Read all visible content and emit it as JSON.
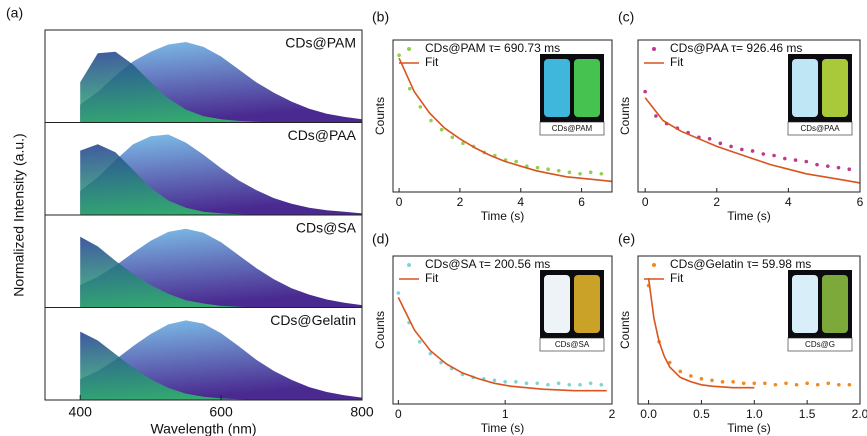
{
  "chart_data": [
    {
      "type": "area",
      "label": "(a)",
      "xlabel": "Wavelength (nm)",
      "ylabel": "Normalized Intensity (a.u.)",
      "xlim": [
        350,
        800
      ],
      "ylim": [
        0,
        1.1
      ],
      "xticks": [
        400,
        600,
        800
      ],
      "x": [
        400,
        425,
        450,
        475,
        500,
        525,
        550,
        575,
        600,
        625,
        650,
        675,
        700,
        725,
        750,
        775,
        800
      ],
      "subplots": [
        {
          "label": "CDs@PAM",
          "series": [
            {
              "gradient": [
                "#1e3c8f",
                "#2fbf6a"
              ],
              "values": [
                0.5,
                0.86,
                0.88,
                0.72,
                0.5,
                0.3,
                0.16,
                0.08,
                0.04,
                0.02,
                0.01,
                0,
                0,
                0,
                0,
                0,
                0
              ]
            },
            {
              "gradient": [
                "#7fc4ec",
                "#4a2a90"
              ],
              "values": [
                0.22,
                0.38,
                0.58,
                0.76,
                0.88,
                0.97,
                1.0,
                0.94,
                0.82,
                0.66,
                0.5,
                0.37,
                0.26,
                0.17,
                0.11,
                0.07,
                0.04
              ]
            }
          ]
        },
        {
          "label": "CDs@PAA",
          "series": [
            {
              "gradient": [
                "#1e3c8f",
                "#2fbf6a"
              ],
              "values": [
                0.8,
                0.88,
                0.78,
                0.56,
                0.34,
                0.18,
                0.09,
                0.04,
                0.02,
                0.01,
                0,
                0,
                0,
                0,
                0,
                0,
                0
              ]
            },
            {
              "gradient": [
                "#7fc4ec",
                "#4a2a90"
              ],
              "values": [
                0.3,
                0.47,
                0.68,
                0.88,
                0.98,
                1.0,
                0.9,
                0.75,
                0.58,
                0.43,
                0.31,
                0.21,
                0.14,
                0.09,
                0.06,
                0.04,
                0.02
              ]
            }
          ]
        },
        {
          "label": "CDs@SA",
          "series": [
            {
              "gradient": [
                "#1e3c8f",
                "#2fbf6a"
              ],
              "values": [
                0.88,
                0.76,
                0.58,
                0.42,
                0.28,
                0.17,
                0.09,
                0.05,
                0.02,
                0.01,
                0,
                0,
                0,
                0,
                0,
                0,
                0
              ]
            },
            {
              "gradient": [
                "#7fc4ec",
                "#4a2a90"
              ],
              "values": [
                0.28,
                0.38,
                0.52,
                0.68,
                0.83,
                0.94,
                0.98,
                0.93,
                0.81,
                0.65,
                0.49,
                0.35,
                0.24,
                0.16,
                0.1,
                0.06,
                0.03
              ]
            }
          ]
        },
        {
          "label": "CDs@Gelatin",
          "series": [
            {
              "gradient": [
                "#1e3c8f",
                "#2fbf6a"
              ],
              "values": [
                0.85,
                0.74,
                0.57,
                0.4,
                0.26,
                0.15,
                0.08,
                0.04,
                0.02,
                0.01,
                0,
                0,
                0,
                0,
                0,
                0,
                0
              ]
            },
            {
              "gradient": [
                "#7fc4ec",
                "#4a2a90"
              ],
              "values": [
                0.26,
                0.36,
                0.5,
                0.67,
                0.82,
                0.94,
                0.99,
                0.95,
                0.83,
                0.67,
                0.5,
                0.36,
                0.25,
                0.16,
                0.1,
                0.06,
                0.03
              ]
            }
          ]
        }
      ]
    },
    {
      "type": "decay",
      "label": "(b)",
      "xlabel": "Time (s)",
      "ylabel": "Counts",
      "xlim": [
        -0.2,
        7
      ],
      "ylim": [
        0,
        1
      ],
      "xticks": [
        0,
        2,
        4,
        6
      ],
      "inset_label": "CDs@PAM",
      "inset_colors": [
        "#3fb7dc",
        "#45c250"
      ],
      "series": [
        {
          "name": "CDs@PAM τ= 690.73 ms",
          "kind": "scatter",
          "color": "#8fd14f",
          "x": [
            0,
            0.35,
            0.7,
            1.05,
            1.4,
            1.75,
            2.1,
            2.45,
            2.8,
            3.15,
            3.5,
            3.85,
            4.2,
            4.55,
            4.9,
            5.25,
            5.6,
            5.95,
            6.3,
            6.65
          ],
          "values": [
            0.9,
            0.68,
            0.56,
            0.47,
            0.41,
            0.36,
            0.32,
            0.3,
            0.26,
            0.24,
            0.21,
            0.2,
            0.17,
            0.16,
            0.15,
            0.14,
            0.13,
            0.12,
            0.13,
            0.12
          ]
        },
        {
          "name": "Fit",
          "kind": "line",
          "color": "#d9541e",
          "x": [
            0,
            0.5,
            1,
            1.5,
            2,
            2.5,
            3,
            3.5,
            4,
            4.5,
            5,
            5.5,
            6,
            6.5,
            7
          ],
          "values": [
            0.88,
            0.66,
            0.52,
            0.42,
            0.35,
            0.29,
            0.24,
            0.2,
            0.17,
            0.14,
            0.12,
            0.1,
            0.09,
            0.08,
            0.07
          ]
        }
      ]
    },
    {
      "type": "decay",
      "label": "(c)",
      "xlabel": "Time (s)",
      "ylabel": "Counts",
      "xlim": [
        -0.2,
        6
      ],
      "ylim": [
        0,
        1
      ],
      "xticks": [
        0,
        2,
        4,
        6
      ],
      "inset_label": "CDs@PAA",
      "inset_colors": [
        "#bfe6f5",
        "#a9c93a"
      ],
      "series": [
        {
          "name": "CDs@PAA τ= 926.46 ms",
          "kind": "scatter",
          "color": "#c2378f",
          "x": [
            0,
            0.3,
            0.6,
            0.9,
            1.2,
            1.5,
            1.8,
            2.1,
            2.4,
            2.7,
            3,
            3.3,
            3.6,
            3.9,
            4.2,
            4.5,
            4.8,
            5.1,
            5.4,
            5.7
          ],
          "values": [
            0.66,
            0.5,
            0.45,
            0.42,
            0.39,
            0.36,
            0.35,
            0.32,
            0.3,
            0.28,
            0.27,
            0.25,
            0.24,
            0.22,
            0.21,
            0.2,
            0.18,
            0.17,
            0.16,
            0.15
          ]
        },
        {
          "name": "Fit",
          "kind": "line",
          "color": "#d9541e",
          "x": [
            0,
            0.5,
            1,
            1.5,
            2,
            2.5,
            3,
            3.5,
            4,
            4.5,
            5,
            5.5,
            6
          ],
          "values": [
            0.62,
            0.47,
            0.4,
            0.35,
            0.3,
            0.26,
            0.22,
            0.18,
            0.15,
            0.12,
            0.1,
            0.08,
            0.06
          ]
        }
      ]
    },
    {
      "type": "decay",
      "label": "(d)",
      "xlabel": "Time (s)",
      "ylabel": "Counts",
      "xlim": [
        -0.05,
        2
      ],
      "ylim": [
        0,
        1
      ],
      "xticks": [
        0,
        1,
        2
      ],
      "inset_label": "CDs@SA",
      "inset_colors": [
        "#eef3f7",
        "#c9a227"
      ],
      "series": [
        {
          "name": "CDs@SA τ= 200.56 ms",
          "kind": "scatter",
          "color": "#7fd3d6",
          "x": [
            0,
            0.1,
            0.2,
            0.3,
            0.4,
            0.5,
            0.6,
            0.7,
            0.8,
            0.9,
            1,
            1.1,
            1.2,
            1.3,
            1.4,
            1.5,
            1.6,
            1.7,
            1.8,
            1.9
          ],
          "values": [
            0.75,
            0.55,
            0.42,
            0.34,
            0.28,
            0.24,
            0.2,
            0.18,
            0.17,
            0.16,
            0.15,
            0.15,
            0.14,
            0.14,
            0.13,
            0.14,
            0.13,
            0.13,
            0.14,
            0.13
          ]
        },
        {
          "name": "Fit",
          "kind": "line",
          "color": "#d9541e",
          "x": [
            0,
            0.15,
            0.3,
            0.45,
            0.6,
            0.75,
            0.9,
            1.05,
            1.2,
            1.35,
            1.5,
            1.65,
            1.8,
            1.95
          ],
          "values": [
            0.72,
            0.5,
            0.36,
            0.27,
            0.21,
            0.17,
            0.14,
            0.12,
            0.11,
            0.1,
            0.095,
            0.09,
            0.09,
            0.09
          ]
        }
      ]
    },
    {
      "type": "decay",
      "label": "(e)",
      "xlabel": "Time (s)",
      "ylabel": "Counts",
      "xlim": [
        -0.1,
        2
      ],
      "ylim": [
        0,
        1
      ],
      "xticks": [
        {
          "value": 0,
          "label": "0.0"
        },
        {
          "value": 0.5,
          "label": "0.5"
        },
        {
          "value": 1,
          "label": "1.0"
        },
        {
          "value": 1.5,
          "label": "1.5"
        },
        {
          "value": 2,
          "label": "2.0"
        }
      ],
      "inset_label": "CDs@G",
      "inset_colors": [
        "#d8eef8",
        "#7da83a"
      ],
      "series": [
        {
          "name": "CDs@Gelatin τ= 59.98 ms",
          "kind": "scatter",
          "color": "#f2891f",
          "x": [
            0,
            0.1,
            0.2,
            0.3,
            0.4,
            0.5,
            0.6,
            0.7,
            0.8,
            0.9,
            1,
            1.1,
            1.2,
            1.3,
            1.4,
            1.5,
            1.6,
            1.7,
            1.8,
            1.9
          ],
          "values": [
            0.8,
            0.42,
            0.28,
            0.22,
            0.19,
            0.17,
            0.16,
            0.15,
            0.15,
            0.14,
            0.14,
            0.14,
            0.13,
            0.14,
            0.13,
            0.14,
            0.13,
            0.14,
            0.13,
            0.13
          ]
        },
        {
          "name": "Fit",
          "kind": "line",
          "color": "#d9541e",
          "x": [
            0,
            0.05,
            0.1,
            0.15,
            0.2,
            0.3,
            0.4,
            0.5,
            0.6,
            0.8,
            1
          ],
          "values": [
            0.85,
            0.58,
            0.42,
            0.32,
            0.25,
            0.18,
            0.15,
            0.13,
            0.12,
            0.11,
            0.11
          ]
        }
      ]
    }
  ]
}
